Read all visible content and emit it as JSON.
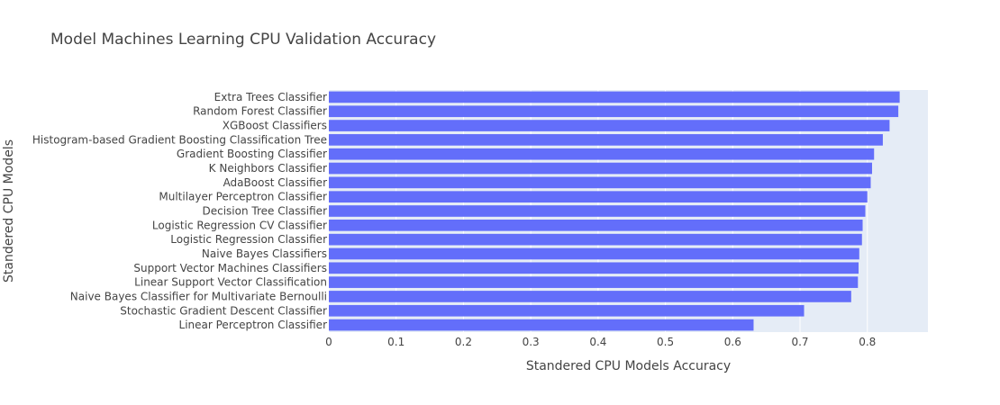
{
  "chart_data": {
    "type": "bar",
    "orientation": "horizontal",
    "title": "Model Machines Learning CPU Validation Accuracy",
    "xlabel": "Standered CPU Models Accuracy",
    "ylabel": "Standered CPU Models",
    "xlim": [
      0,
      0.89
    ],
    "xticks": [
      0,
      0.1,
      0.2,
      0.3,
      0.4,
      0.5,
      0.6,
      0.7,
      0.8
    ],
    "xtick_labels": [
      "0",
      "0.1",
      "0.2",
      "0.3",
      "0.4",
      "0.5",
      "0.6",
      "0.7",
      "0.8"
    ],
    "grid": true,
    "bar_color": "#636efa",
    "plot_bg": "#e5ecf6",
    "categories": [
      "Extra Trees Classifier",
      "Random Forest Classifier",
      "XGBoost Classifiers",
      "Histogram-based Gradient Boosting Classification Tree",
      "Gradient Boosting Classifier",
      "K Neighbors Classifier",
      "AdaBoost Classifier",
      "Multilayer Perceptron Classifier",
      "Decision Tree Classifier",
      "Logistic Regression CV Classifier",
      "Logistic Regression Classifier",
      "Naive Bayes Classifiers",
      "Support Vector Machines Classifiers",
      "Linear Support Vector Classification",
      "Naive Bayes Classifier for Multivariate Bernoulli",
      "Stochastic Gradient Descent Classifier",
      "Linear Perceptron Classifier"
    ],
    "values": [
      0.848,
      0.846,
      0.833,
      0.823,
      0.81,
      0.807,
      0.805,
      0.8,
      0.797,
      0.793,
      0.792,
      0.788,
      0.787,
      0.786,
      0.776,
      0.706,
      0.631
    ]
  }
}
